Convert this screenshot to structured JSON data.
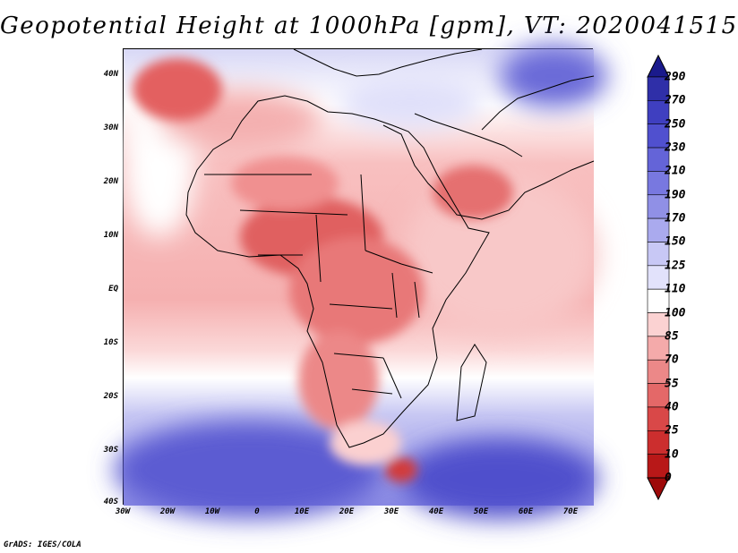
{
  "title": "Geopotential Height at 1000hPa [gpm], VT: 2020041515",
  "lat_labels": [
    "40N",
    "30N",
    "20N",
    "10N",
    "EQ",
    "10S",
    "20S",
    "30S",
    "40S"
  ],
  "lon_labels": [
    "30W",
    "20W",
    "10W",
    "0",
    "10E",
    "20E",
    "30E",
    "40E",
    "50E",
    "60E",
    "70E"
  ],
  "colorbar": {
    "labels": [
      "290",
      "270",
      "250",
      "230",
      "210",
      "190",
      "170",
      "150",
      "125",
      "110",
      "100",
      "85",
      "70",
      "55",
      "40",
      "25",
      "10",
      "0"
    ],
    "colors": [
      "#1a1a8c",
      "#2f2fa8",
      "#3f3fc0",
      "#5050cf",
      "#6464d8",
      "#7878e0",
      "#9090e6",
      "#aaaaee",
      "#c8c8f5",
      "#e2e2fb",
      "#ffffff",
      "#fbd2d2",
      "#f4aaaa",
      "#ec8888",
      "#e46868",
      "#d94848",
      "#cc2e2e",
      "#b81818",
      "#9e0a0a"
    ]
  },
  "credit": "GrADS: IGES/COLA"
}
